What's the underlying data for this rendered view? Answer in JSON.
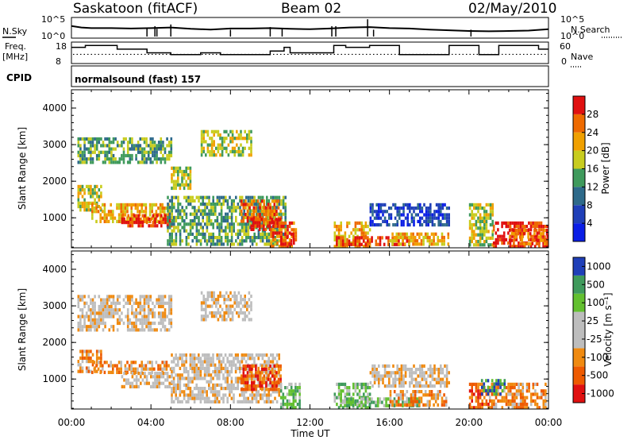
{
  "header": {
    "station": "Saskatoon (fitACF)",
    "beam": "Beam 02",
    "date": "02/May/2010"
  },
  "strip_labels": {
    "nsky": "N.Sky",
    "freq": "Freq.",
    "freq_unit": "[MHz]",
    "cpid": "CPID",
    "nsearch": "N.Search",
    "nave": "Nave",
    "cpid_value": "normalsound (fast) 157"
  },
  "colors": {
    "power": [
      "#0a1ee6",
      "#1f3fb8",
      "#2e6a8a",
      "#3f9a5c",
      "#c8cc1e",
      "#f0a000",
      "#ee6a00",
      "#e01010"
    ],
    "velocity": [
      "#e01010",
      "#ee5a00",
      "#f08a10",
      "#bdbdbd",
      "#bdbdbd",
      "#63c030",
      "#3f9a5c",
      "#1f3fb8"
    ]
  },
  "chart_data": [
    {
      "type": "line",
      "panel": "noise",
      "series": [
        {
          "name": "N.Sky",
          "x": [
            0,
            0.5,
            1,
            2,
            3,
            4,
            5,
            6,
            7,
            8,
            9,
            10,
            11,
            12,
            13,
            14,
            15,
            16,
            17,
            18,
            19,
            20,
            21,
            22,
            23,
            24
          ],
          "values": [
            3.0,
            2.6,
            2.4,
            2.4,
            2.3,
            2.4,
            2.6,
            2.2,
            2.0,
            2.3,
            2.3,
            2.4,
            2.2,
            2.1,
            2.3,
            2.6,
            2.7,
            2.4,
            2.3,
            2.0,
            1.8,
            1.6,
            1.5,
            1.6,
            1.7,
            2.1
          ]
        }
      ],
      "y_ticks": [
        "10^5",
        "10^0"
      ],
      "right_ticks": [
        "10^5",
        "10^0"
      ]
    },
    {
      "type": "line",
      "panel": "frequency",
      "series": [
        {
          "name": "Freq.",
          "x": [
            0,
            0.7,
            0.7,
            2.3,
            2.3,
            3.8,
            3.8,
            5.0,
            5.0,
            6.5,
            6.5,
            7.5,
            7.5,
            10.0,
            10.0,
            10.7,
            10.7,
            11.0,
            11.0,
            13.2,
            13.2,
            13.8,
            13.8,
            15.0,
            15.0,
            16.5,
            16.5,
            19.0,
            19.0,
            20.5,
            20.5,
            21.5,
            21.5,
            23.5,
            23.5,
            24
          ],
          "values": [
            16,
            16,
            17,
            17,
            15,
            15,
            13,
            13,
            12,
            12,
            13,
            13,
            12,
            12,
            14,
            14,
            16,
            16,
            13,
            13,
            17,
            17,
            16,
            16,
            17,
            17,
            12,
            12,
            17,
            17,
            12,
            12,
            17,
            17,
            15,
            15
          ]
        }
      ],
      "y_ticks": [
        "18",
        "8"
      ],
      "right_ticks": [
        "60",
        "0"
      ],
      "nave_level": 25
    },
    {
      "type": "heatmap",
      "panel": "power",
      "x_ticks": [
        "00:00",
        "04:00",
        "08:00",
        "12:00",
        "16:00",
        "20:00",
        "00:00"
      ],
      "xlim": [
        0,
        24
      ],
      "ylim": [
        180,
        4500
      ],
      "y_ticks": [
        1000,
        2000,
        3000,
        4000
      ],
      "ylabel": "Slant Range [km]",
      "colorbar_label": "Power [dB]",
      "colorbar_ticks": [
        "4",
        "8",
        "12",
        "16",
        "20",
        "24",
        "28"
      ],
      "regions": [
        {
          "t": [
            0.3,
            5.0
          ],
          "r": [
            2500,
            3200
          ],
          "val": 3
        },
        {
          "t": [
            0.3,
            1.5
          ],
          "r": [
            1200,
            1900
          ],
          "val": 4
        },
        {
          "t": [
            1.0,
            5.0
          ],
          "r": [
            900,
            1400
          ],
          "val": 5
        },
        {
          "t": [
            2.5,
            5.0
          ],
          "r": [
            800,
            1100
          ],
          "val": 7
        },
        {
          "t": [
            4.8,
            10.8
          ],
          "r": [
            300,
            1600
          ],
          "val": 3
        },
        {
          "t": [
            5.0,
            6.0
          ],
          "r": [
            1800,
            2400
          ],
          "val": 4
        },
        {
          "t": [
            6.5,
            9.0
          ],
          "r": [
            2700,
            3400
          ],
          "val": 4
        },
        {
          "t": [
            8.5,
            10.5
          ],
          "r": [
            900,
            1500
          ],
          "val": 6
        },
        {
          "t": [
            9.0,
            10.5
          ],
          "r": [
            700,
            1000
          ],
          "val": 7
        },
        {
          "t": [
            10.0,
            11.3
          ],
          "r": [
            250,
            900
          ],
          "val": 6
        },
        {
          "t": [
            10.5,
            11.2
          ],
          "r": [
            250,
            600
          ],
          "val": 7
        },
        {
          "t": [
            13.2,
            15.0
          ],
          "r": [
            250,
            900
          ],
          "val": 5
        },
        {
          "t": [
            13.3,
            17.0
          ],
          "r": [
            250,
            500
          ],
          "val": 7
        },
        {
          "t": [
            15.0,
            19.0
          ],
          "r": [
            850,
            1400
          ],
          "val": 1
        },
        {
          "t": [
            16.0,
            19.0
          ],
          "r": [
            300,
            600
          ],
          "val": 5
        },
        {
          "t": [
            20.0,
            21.2
          ],
          "r": [
            300,
            1400
          ],
          "val": 4
        },
        {
          "t": [
            21.2,
            23.9
          ],
          "r": [
            250,
            900
          ],
          "val": 7
        },
        {
          "t": [
            22.0,
            23.9
          ],
          "r": [
            250,
            700
          ],
          "val": 6
        }
      ]
    },
    {
      "type": "heatmap",
      "panel": "velocity",
      "x_ticks": [
        "00:00",
        "04:00",
        "08:00",
        "12:00",
        "16:00",
        "20:00",
        "00:00"
      ],
      "xlim": [
        0,
        24
      ],
      "ylim": [
        180,
        4500
      ],
      "y_ticks": [
        1000,
        2000,
        3000,
        4000
      ],
      "ylabel": "Slant Range [km]",
      "xlabel": "Time UT",
      "colorbar_label": "Velocity [m s⁻¹]",
      "colorbar_ticks": [
        "1000",
        "500",
        "100",
        "25",
        "-25",
        "-100",
        "-500",
        "-1000"
      ],
      "regions": [
        {
          "t": [
            0.3,
            5.0
          ],
          "r": [
            2300,
            3300
          ],
          "val": 3
        },
        {
          "t": [
            0.3,
            1.5
          ],
          "r": [
            1200,
            1800
          ],
          "val": 2
        },
        {
          "t": [
            1.0,
            5.0
          ],
          "r": [
            1200,
            1500
          ],
          "val": 2
        },
        {
          "t": [
            2.5,
            5.0
          ],
          "r": [
            800,
            1200
          ],
          "val": 3
        },
        {
          "t": [
            5.0,
            10.5
          ],
          "r": [
            400,
            1700
          ],
          "val": 3
        },
        {
          "t": [
            6.5,
            9.0
          ],
          "r": [
            2600,
            3400
          ],
          "val": 3
        },
        {
          "t": [
            8.5,
            10.5
          ],
          "r": [
            700,
            1400
          ],
          "val": 1
        },
        {
          "t": [
            10.5,
            11.5
          ],
          "r": [
            250,
            900
          ],
          "val": 5
        },
        {
          "t": [
            13.2,
            15.0
          ],
          "r": [
            250,
            900
          ],
          "val": 5
        },
        {
          "t": [
            13.5,
            17.5
          ],
          "r": [
            250,
            500
          ],
          "val": 5
        },
        {
          "t": [
            15.0,
            19.0
          ],
          "r": [
            850,
            1400
          ],
          "val": 3
        },
        {
          "t": [
            16.0,
            19.0
          ],
          "r": [
            300,
            700
          ],
          "val": 2
        },
        {
          "t": [
            20.0,
            21.0
          ],
          "r": [
            250,
            900
          ],
          "val": 1
        },
        {
          "t": [
            21.0,
            23.9
          ],
          "r": [
            250,
            900
          ],
          "val": 2
        },
        {
          "t": [
            20.6,
            21.8
          ],
          "r": [
            600,
            1000
          ],
          "val": 6
        }
      ]
    }
  ]
}
